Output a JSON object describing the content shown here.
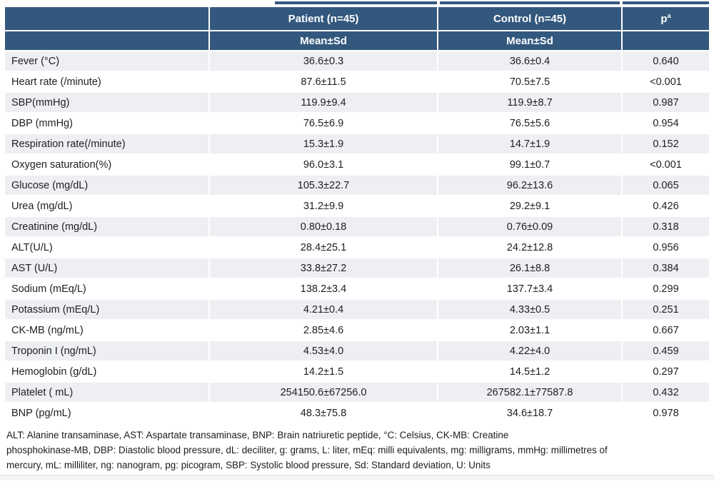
{
  "colors": {
    "header_navy": "#33587E",
    "row_alt_gray": "#EDEFF3",
    "page_bg": "#FFFFFF",
    "body_text": "#1E1E1E"
  },
  "header": {
    "patient": "Patient (n=45)",
    "control": "Control (n=45)",
    "p_label": "p",
    "p_sup": "a",
    "sub_patient": "Mean±Sd",
    "sub_control": "Mean±Sd"
  },
  "table": {
    "rows": [
      {
        "label": "Fever (°C)",
        "patient": "36.6±0.3",
        "control": "36.6±0.4",
        "p": "0.640"
      },
      {
        "label": "Heart rate (/minute)",
        "patient": "87.6±11.5",
        "control": "70.5±7.5",
        "p": "<0.001"
      },
      {
        "label": "SBP(mmHg)",
        "patient": "119.9±9.4",
        "control": "119.9±8.7",
        "p": "0.987"
      },
      {
        "label": "DBP (mmHg)",
        "patient": "76.5±6.9",
        "control": "76.5±5.6",
        "p": "0.954"
      },
      {
        "label": "Respiration rate(/minute)",
        "patient": "15.3±1.9",
        "control": "14.7±1.9",
        "p": "0.152"
      },
      {
        "label": "Oxygen saturation(%)",
        "patient": "96.0±3.1",
        "control": "99.1±0.7",
        "p": "<0.001"
      },
      {
        "label": "Glucose  (mg/dL)",
        "patient": "105.3±22.7",
        "control": "96.2±13.6",
        "p": "0.065"
      },
      {
        "label": "Urea (mg/dL)",
        "patient": "31.2±9.9",
        "control": "29.2±9.1",
        "p": "0.426"
      },
      {
        "label": "Creatinine (mg/dL)",
        "patient": "0.80±0.18",
        "control": "0.76±0.09",
        "p": "0.318"
      },
      {
        "label": "ALT(U/L)",
        "patient": "28.4±25.1",
        "control": "24.2±12.8",
        "p": "0.956"
      },
      {
        "label": "AST (U/L)",
        "patient": "33.8±27.2",
        "control": "26.1±8.8",
        "p": "0.384"
      },
      {
        "label": "Sodium (mEq/L)",
        "patient": "138.2±3.4",
        "control": "137.7±3.4",
        "p": "0.299"
      },
      {
        "label": "Potassium (mEq/L)",
        "patient": "4.21±0.4",
        "control": "4.33±0.5",
        "p": "0.251"
      },
      {
        "label": "CK-MB (ng/mL)",
        "patient": "2.85±4.6",
        "control": "2.03±1.1",
        "p": "0.667"
      },
      {
        "label": "Troponin I (ng/mL)",
        "patient": "4.53±4.0",
        "control": "4.22±4.0",
        "p": "0.459"
      },
      {
        "label": "Hemoglobin (g/dL)",
        "patient": "14.2±1.5",
        "control": "14.5±1.2",
        "p": "0.297"
      },
      {
        "label": "Platelet ( mL)",
        "patient": "254150.6±67256.0",
        "control": "267582.1±77587.8",
        "p": "0.432"
      },
      {
        "label": "BNP (pg/mL)",
        "patient": "48.3±75.8",
        "control": "34.6±18.7",
        "p": "0.978"
      }
    ]
  },
  "footnote": {
    "lines": [
      "ALT: Alanine transaminase, AST: Aspartate transaminase, BNP: Brain natriuretic peptide, °C: Celsius, CK-MB: Creatine",
      "phosphokinase-MB, DBP: Diastolic blood pressure, dL: deciliter, g: grams, L: liter, mEq: milli equivalents, mg: milligrams, mmHg: millimetres of",
      "mercury, mL: milliliter, ng: nanogram, pg: picogram, SBP: Systolic blood pressure, Sd: Standard deviation, U: Units"
    ]
  }
}
